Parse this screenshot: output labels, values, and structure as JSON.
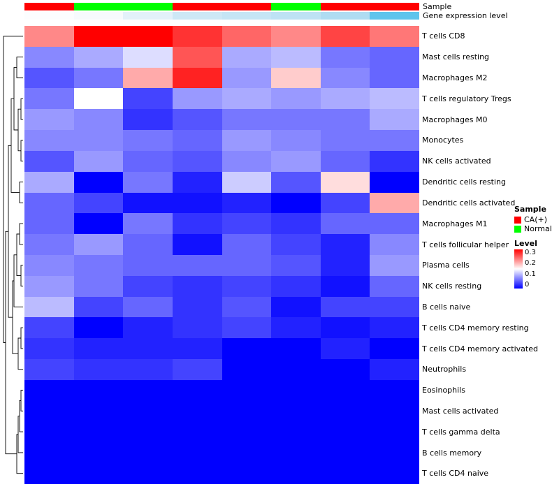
{
  "annotations": {
    "sample_label": "Sample",
    "gene_label": "Gene expression level",
    "sample_colors": [
      "#FF0000",
      "#00FF00",
      "#00FF00",
      "#FF0000",
      "#FF0000",
      "#00FF00",
      "#FF0000",
      "#FF0000"
    ],
    "gene_colors": [
      "#FCFDFE",
      "#F7FAFD",
      "#E3F1FA",
      "#CDE8F6",
      "#C5E5F5",
      "#BEE2F4",
      "#AFDCF2",
      "#5FC4EC"
    ]
  },
  "chart_data": {
    "type": "heatmap",
    "columns": 8,
    "rows": [
      "T cells CD8",
      "Mast cells resting",
      "Macrophages M2",
      "T cells regulatory Tregs",
      "Macrophages M0",
      "Monocytes",
      "NK cells activated",
      "Dendritic cells resting",
      "Dendritic cells activated",
      "Macrophages M1",
      "T cells follicular helper",
      "Plasma cells",
      "NK cells resting",
      "B cells naive",
      "T cells CD4 memory resting",
      "T cells CD4 memory activated",
      "Neutrophils",
      "Eosinophils",
      "Mast cells activated",
      "T cells gamma delta",
      "B cells memory",
      "T cells CD4 naive"
    ],
    "values": [
      [
        0.22,
        0.3,
        0.3,
        0.27,
        0.24,
        0.22,
        0.26,
        0.23
      ],
      [
        0.08,
        0.1,
        0.13,
        0.25,
        0.1,
        0.11,
        0.07,
        0.06
      ],
      [
        0.05,
        0.07,
        0.2,
        0.28,
        0.09,
        0.18,
        0.08,
        0.06
      ],
      [
        0.07,
        0.15,
        0.04,
        0.09,
        0.1,
        0.09,
        0.1,
        0.11
      ],
      [
        0.09,
        0.08,
        0.03,
        0.05,
        0.07,
        0.07,
        0.07,
        0.1
      ],
      [
        0.08,
        0.08,
        0.07,
        0.06,
        0.09,
        0.08,
        0.07,
        0.07
      ],
      [
        0.05,
        0.09,
        0.06,
        0.05,
        0.08,
        0.09,
        0.06,
        0.03
      ],
      [
        0.1,
        0.0,
        0.07,
        0.02,
        0.12,
        0.05,
        0.17,
        0.0
      ],
      [
        0.06,
        0.04,
        0.01,
        0.01,
        0.02,
        0.0,
        0.04,
        0.2
      ],
      [
        0.06,
        0.0,
        0.07,
        0.03,
        0.04,
        0.03,
        0.06,
        0.06
      ],
      [
        0.07,
        0.09,
        0.06,
        0.01,
        0.06,
        0.04,
        0.02,
        0.08
      ],
      [
        0.08,
        0.07,
        0.06,
        0.06,
        0.06,
        0.05,
        0.02,
        0.09
      ],
      [
        0.09,
        0.07,
        0.04,
        0.03,
        0.04,
        0.03,
        0.01,
        0.06
      ],
      [
        0.11,
        0.04,
        0.06,
        0.03,
        0.05,
        0.01,
        0.04,
        0.04
      ],
      [
        0.04,
        0.0,
        0.02,
        0.03,
        0.04,
        0.02,
        0.01,
        0.02
      ],
      [
        0.03,
        0.02,
        0.02,
        0.02,
        0.0,
        0.0,
        0.02,
        0.0
      ],
      [
        0.04,
        0.03,
        0.03,
        0.04,
        0.0,
        0.0,
        0.0,
        0.02
      ],
      [
        0.0,
        0.0,
        0.0,
        0.0,
        0.0,
        0.0,
        0.0,
        0.0
      ],
      [
        0.0,
        0.0,
        0.0,
        0.0,
        0.0,
        0.0,
        0.0,
        0.0
      ],
      [
        0.0,
        0.0,
        0.0,
        0.0,
        0.0,
        0.0,
        0.0,
        0.0
      ],
      [
        0.0,
        0.0,
        0.0,
        0.0,
        0.0,
        0.0,
        0.0,
        0.0
      ],
      [
        0.0,
        0.0,
        0.0,
        0.0,
        0.0,
        0.0,
        0.0,
        0.0
      ]
    ],
    "vmin": 0,
    "vmax": 0.3,
    "midpoint": 0.15,
    "colormap": {
      "low": "#0000FF",
      "mid": "#FFFFFF",
      "high": "#FF0000"
    }
  },
  "legend": {
    "sample_title": "Sample",
    "sample_items": [
      {
        "label": "CA(+)",
        "color": "#FF0000"
      },
      {
        "label": "Normal",
        "color": "#00FF00"
      }
    ],
    "level_title": "Level",
    "level_ticks": [
      "0.3",
      "0.2",
      "0.1",
      "0"
    ]
  }
}
